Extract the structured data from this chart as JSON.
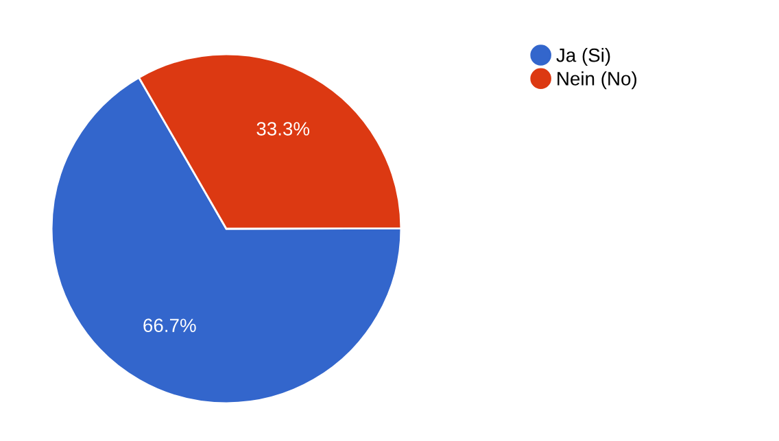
{
  "chart_data": {
    "type": "pie",
    "categories": [
      "Ja (Si)",
      "Nein (No)"
    ],
    "values": [
      66.7,
      33.3
    ],
    "colors": [
      "#3366cc",
      "#dc3912"
    ],
    "value_labels": [
      "66.7%",
      "33.3%"
    ],
    "legend": "top right"
  }
}
